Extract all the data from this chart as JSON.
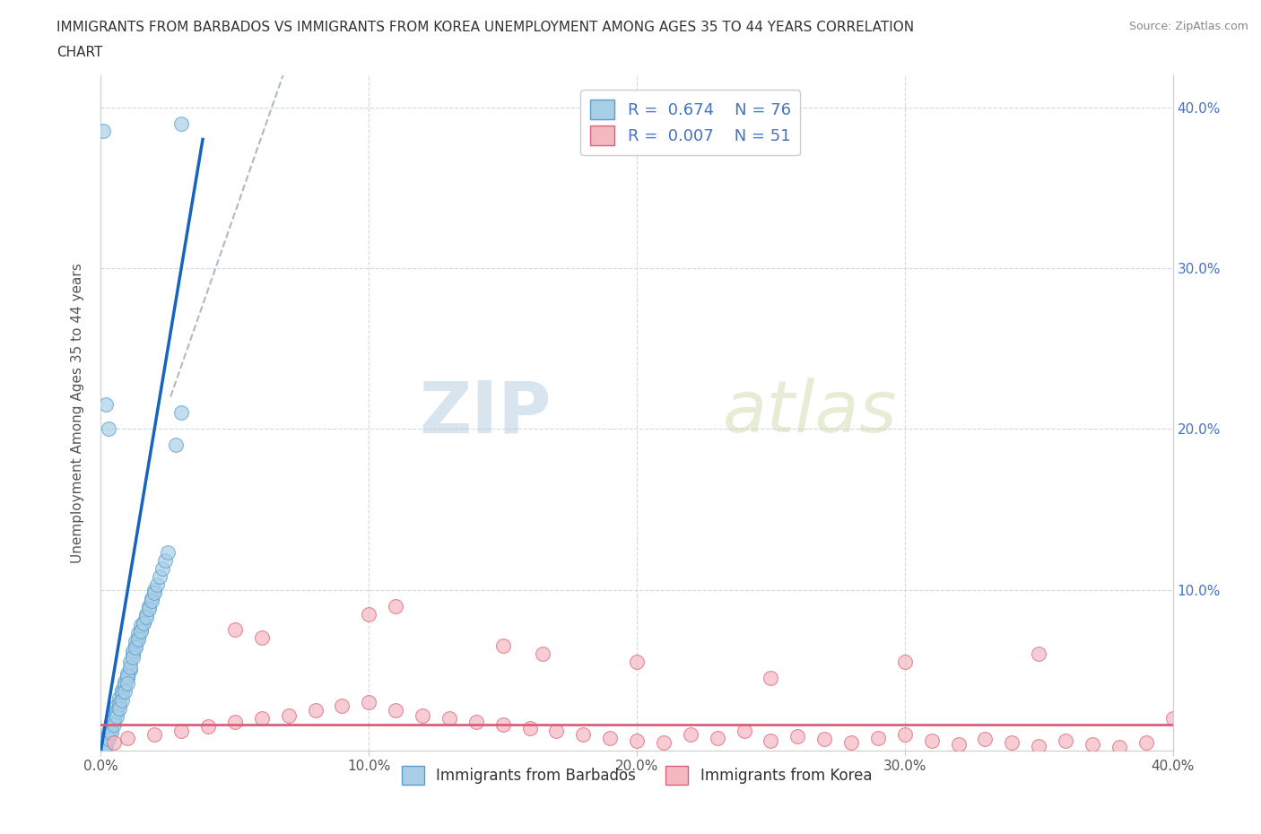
{
  "title_line1": "IMMIGRANTS FROM BARBADOS VS IMMIGRANTS FROM KOREA UNEMPLOYMENT AMONG AGES 35 TO 44 YEARS CORRELATION",
  "title_line2": "CHART",
  "source": "Source: ZipAtlas.com",
  "ylabel": "Unemployment Among Ages 35 to 44 years",
  "xmin": 0.0,
  "xmax": 0.4,
  "ymin": 0.0,
  "ymax": 0.42,
  "xticks": [
    0.0,
    0.1,
    0.2,
    0.3,
    0.4
  ],
  "yticks": [
    0.0,
    0.1,
    0.2,
    0.3,
    0.4
  ],
  "xtick_labels": [
    "0.0%",
    "10.0%",
    "20.0%",
    "30.0%",
    "40.0%"
  ],
  "right_ytick_labels": [
    "",
    "10.0%",
    "20.0%",
    "30.0%",
    "40.0%"
  ],
  "barbados_R": 0.674,
  "barbados_N": 76,
  "korea_R": 0.007,
  "korea_N": 51,
  "barbados_color": "#a8cfe8",
  "barbados_edge": "#5b9dc9",
  "korea_color": "#f4b8c1",
  "korea_edge": "#d9607a",
  "blue_line_color": "#1565c0",
  "pink_line_color": "#d9607a",
  "dashed_line_color": "#b0b8c8",
  "watermark_zip": "ZIP",
  "watermark_atlas": "atlas",
  "legend_label_barbados": "Immigrants from Barbados",
  "legend_label_korea": "Immigrants from Korea",
  "barbados_x": [
    0.001,
    0.002,
    0.003,
    0.004,
    0.005,
    0.006,
    0.007,
    0.008,
    0.009,
    0.01,
    0.011,
    0.012,
    0.013,
    0.014,
    0.015,
    0.016,
    0.017,
    0.018,
    0.019,
    0.02,
    0.001,
    0.002,
    0.003,
    0.004,
    0.005,
    0.006,
    0.007,
    0.008,
    0.009,
    0.01,
    0.011,
    0.012,
    0.013,
    0.014,
    0.015,
    0.001,
    0.002,
    0.003,
    0.004,
    0.005,
    0.006,
    0.007,
    0.008,
    0.009,
    0.01,
    0.011,
    0.012,
    0.013,
    0.014,
    0.015,
    0.016,
    0.017,
    0.018,
    0.019,
    0.02,
    0.021,
    0.022,
    0.023,
    0.024,
    0.025,
    0.001,
    0.002,
    0.003,
    0.004,
    0.005,
    0.006,
    0.007,
    0.008,
    0.009,
    0.01,
    0.028,
    0.03,
    0.003,
    0.002,
    0.001,
    0.03
  ],
  "barbados_y": [
    0.005,
    0.008,
    0.01,
    0.015,
    0.02,
    0.025,
    0.03,
    0.035,
    0.04,
    0.045,
    0.05,
    0.06,
    0.065,
    0.07,
    0.075,
    0.08,
    0.085,
    0.09,
    0.095,
    0.1,
    0.003,
    0.006,
    0.012,
    0.018,
    0.022,
    0.028,
    0.033,
    0.038,
    0.043,
    0.048,
    0.055,
    0.062,
    0.068,
    0.073,
    0.078,
    0.002,
    0.004,
    0.009,
    0.014,
    0.019,
    0.024,
    0.029,
    0.036,
    0.041,
    0.046,
    0.052,
    0.058,
    0.064,
    0.069,
    0.074,
    0.079,
    0.083,
    0.088,
    0.093,
    0.098,
    0.103,
    0.108,
    0.113,
    0.118,
    0.123,
    0.001,
    0.003,
    0.007,
    0.011,
    0.016,
    0.021,
    0.026,
    0.031,
    0.037,
    0.042,
    0.19,
    0.21,
    0.2,
    0.215,
    0.385,
    0.39
  ],
  "korea_x": [
    0.005,
    0.01,
    0.02,
    0.03,
    0.04,
    0.05,
    0.06,
    0.07,
    0.08,
    0.09,
    0.1,
    0.11,
    0.12,
    0.13,
    0.14,
    0.15,
    0.16,
    0.17,
    0.18,
    0.19,
    0.2,
    0.21,
    0.22,
    0.23,
    0.24,
    0.25,
    0.26,
    0.27,
    0.28,
    0.29,
    0.3,
    0.31,
    0.32,
    0.33,
    0.34,
    0.35,
    0.36,
    0.37,
    0.38,
    0.39,
    0.05,
    0.1,
    0.15,
    0.2,
    0.25,
    0.3,
    0.35,
    0.06,
    0.11,
    0.165,
    0.4
  ],
  "korea_y": [
    0.005,
    0.008,
    0.01,
    0.012,
    0.015,
    0.018,
    0.02,
    0.022,
    0.025,
    0.028,
    0.03,
    0.025,
    0.022,
    0.02,
    0.018,
    0.016,
    0.014,
    0.012,
    0.01,
    0.008,
    0.006,
    0.005,
    0.01,
    0.008,
    0.012,
    0.006,
    0.009,
    0.007,
    0.005,
    0.008,
    0.01,
    0.006,
    0.004,
    0.007,
    0.005,
    0.003,
    0.006,
    0.004,
    0.002,
    0.005,
    0.075,
    0.085,
    0.065,
    0.055,
    0.045,
    0.055,
    0.06,
    0.07,
    0.09,
    0.06,
    0.02
  ]
}
